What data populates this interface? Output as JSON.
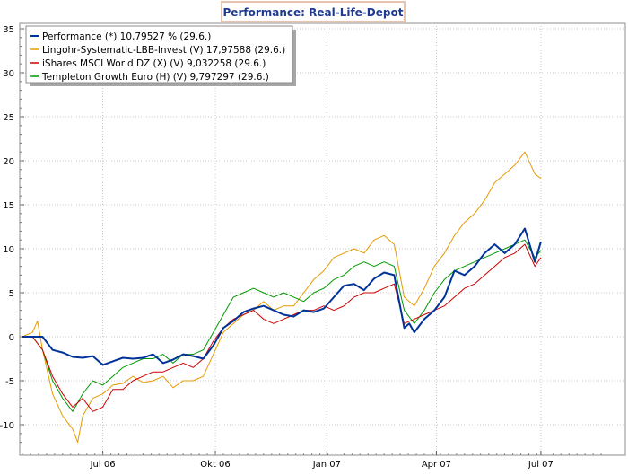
{
  "chart_data": {
    "type": "line",
    "title": "Performance: Real-Life-Depot",
    "xlabel": "",
    "ylabel": "",
    "ylim": [
      -13,
      36
    ],
    "y_ticks": [
      35,
      30,
      25,
      20,
      15,
      10,
      5,
      0,
      -5,
      -10
    ],
    "x_range": [
      0,
      58.3
    ],
    "x_tick_labels": [
      {
        "label": "Jul 06",
        "x": 8
      },
      {
        "label": "Okt 06",
        "x": 19.2
      },
      {
        "label": "Jan 07",
        "x": 30.3
      },
      {
        "label": "Apr 07",
        "x": 41.2
      },
      {
        "label": "Jul 07",
        "x": 51.6
      }
    ],
    "grid": true,
    "legend_position": "top-left",
    "series": [
      {
        "name": "Performance",
        "legend": "Performance (*) 10,79527 % (29.6.)",
        "color": "#003399",
        "points": [
          [
            0,
            0
          ],
          [
            1,
            0
          ],
          [
            2,
            0
          ],
          [
            3,
            -1.5
          ],
          [
            4,
            -1.8
          ],
          [
            5,
            -2.3
          ],
          [
            6,
            -2.4
          ],
          [
            7,
            -2.2
          ],
          [
            8,
            -3.2
          ],
          [
            9,
            -2.8
          ],
          [
            10,
            -2.4
          ],
          [
            11,
            -2.5
          ],
          [
            12,
            -2.4
          ],
          [
            13,
            -2.0
          ],
          [
            14,
            -3.0
          ],
          [
            15,
            -2.6
          ],
          [
            16,
            -2.0
          ],
          [
            17,
            -2.2
          ],
          [
            18,
            -2.5
          ],
          [
            19,
            -1.0
          ],
          [
            20,
            1.0
          ],
          [
            21,
            1.8
          ],
          [
            22,
            2.8
          ],
          [
            23,
            3.2
          ],
          [
            24,
            3.5
          ],
          [
            25,
            3.0
          ],
          [
            26,
            2.5
          ],
          [
            27,
            2.3
          ],
          [
            28,
            3.0
          ],
          [
            29,
            2.8
          ],
          [
            30,
            3.2
          ],
          [
            31,
            4.5
          ],
          [
            32,
            5.8
          ],
          [
            33,
            6.0
          ],
          [
            34,
            5.3
          ],
          [
            35,
            6.6
          ],
          [
            36,
            7.3
          ],
          [
            37,
            7.0
          ],
          [
            38,
            1.0
          ],
          [
            38.5,
            1.5
          ],
          [
            39,
            0.5
          ],
          [
            40,
            2.0
          ],
          [
            41,
            3.0
          ],
          [
            42,
            4.5
          ],
          [
            43,
            7.5
          ],
          [
            44,
            7.0
          ],
          [
            45,
            8.0
          ],
          [
            46,
            9.5
          ],
          [
            47,
            10.5
          ],
          [
            48,
            9.5
          ],
          [
            49,
            10.5
          ],
          [
            50,
            12.3
          ],
          [
            51,
            8.5
          ],
          [
            51.6,
            10.8
          ]
        ]
      },
      {
        "name": "Lingohr-Systematic-LBB-Invest",
        "legend": "Lingohr-Systematic-LBB-Invest (V) 17,97588 (29.6.)",
        "color": "#e69a00",
        "points": [
          [
            0,
            0
          ],
          [
            1,
            0.5
          ],
          [
            1.5,
            1.8
          ],
          [
            2,
            -1.5
          ],
          [
            3,
            -6.5
          ],
          [
            4,
            -9.0
          ],
          [
            5,
            -10.5
          ],
          [
            5.5,
            -12.0
          ],
          [
            6,
            -9.0
          ],
          [
            7,
            -7.0
          ],
          [
            8,
            -6.5
          ],
          [
            9,
            -5.5
          ],
          [
            10,
            -5.3
          ],
          [
            11,
            -4.5
          ],
          [
            12,
            -5.2
          ],
          [
            13,
            -5.0
          ],
          [
            14,
            -4.5
          ],
          [
            15,
            -5.8
          ],
          [
            16,
            -5.0
          ],
          [
            17,
            -5.0
          ],
          [
            18,
            -4.5
          ],
          [
            19,
            -2.0
          ],
          [
            20,
            0.5
          ],
          [
            21,
            1.5
          ],
          [
            22,
            2.5
          ],
          [
            23,
            3.0
          ],
          [
            24,
            4.0
          ],
          [
            25,
            3.0
          ],
          [
            26,
            3.5
          ],
          [
            27,
            3.5
          ],
          [
            28,
            5.0
          ],
          [
            29,
            6.5
          ],
          [
            30,
            7.5
          ],
          [
            31,
            9.0
          ],
          [
            32,
            9.5
          ],
          [
            33,
            10.0
          ],
          [
            34,
            9.5
          ],
          [
            35,
            11.0
          ],
          [
            36,
            11.5
          ],
          [
            37,
            10.5
          ],
          [
            38,
            4.5
          ],
          [
            39,
            3.5
          ],
          [
            40,
            5.5
          ],
          [
            41,
            8.0
          ],
          [
            42,
            9.5
          ],
          [
            43,
            11.5
          ],
          [
            44,
            13.0
          ],
          [
            45,
            14.0
          ],
          [
            46,
            15.5
          ],
          [
            47,
            17.5
          ],
          [
            48,
            18.5
          ],
          [
            49,
            19.5
          ],
          [
            50,
            21.0
          ],
          [
            51,
            18.5
          ],
          [
            51.6,
            18.0
          ]
        ]
      },
      {
        "name": "iShares MSCI World DZ",
        "legend": "iShares MSCI World DZ (X) (V) 9,032258 (29.6.)",
        "color": "#cc0000",
        "points": [
          [
            0,
            0
          ],
          [
            1,
            0
          ],
          [
            2,
            -1.5
          ],
          [
            3,
            -4.5
          ],
          [
            4,
            -6.5
          ],
          [
            5,
            -8.0
          ],
          [
            6,
            -7.0
          ],
          [
            7,
            -8.5
          ],
          [
            8,
            -8.0
          ],
          [
            9,
            -6.0
          ],
          [
            10,
            -6.0
          ],
          [
            11,
            -5.0
          ],
          [
            12,
            -4.5
          ],
          [
            13,
            -4.0
          ],
          [
            14,
            -4.0
          ],
          [
            15,
            -3.5
          ],
          [
            16,
            -3.0
          ],
          [
            17,
            -3.5
          ],
          [
            18,
            -2.5
          ],
          [
            19,
            -0.5
          ],
          [
            20,
            1.0
          ],
          [
            21,
            2.0
          ],
          [
            22,
            2.5
          ],
          [
            23,
            3.0
          ],
          [
            24,
            2.0
          ],
          [
            25,
            1.5
          ],
          [
            26,
            2.0
          ],
          [
            27,
            2.5
          ],
          [
            28,
            3.0
          ],
          [
            29,
            3.0
          ],
          [
            30,
            3.5
          ],
          [
            31,
            3.0
          ],
          [
            32,
            3.5
          ],
          [
            33,
            4.5
          ],
          [
            34,
            5.0
          ],
          [
            35,
            5.0
          ],
          [
            36,
            5.5
          ],
          [
            37,
            6.0
          ],
          [
            38,
            1.5
          ],
          [
            39,
            2.0
          ],
          [
            40,
            2.5
          ],
          [
            41,
            3.0
          ],
          [
            42,
            3.5
          ],
          [
            43,
            4.5
          ],
          [
            44,
            5.5
          ],
          [
            45,
            6.0
          ],
          [
            46,
            7.0
          ],
          [
            47,
            8.0
          ],
          [
            48,
            9.0
          ],
          [
            49,
            9.5
          ],
          [
            50,
            10.5
          ],
          [
            51,
            8.0
          ],
          [
            51.6,
            9.0
          ]
        ]
      },
      {
        "name": "Templeton Growth Euro",
        "legend": "Templeton Growth Euro (H) (V) 9,797297 (29.6.)",
        "color": "#009900",
        "points": [
          [
            0,
            0
          ],
          [
            1,
            0
          ],
          [
            2,
            -1.5
          ],
          [
            3,
            -5.0
          ],
          [
            4,
            -7.0
          ],
          [
            5,
            -8.5
          ],
          [
            6,
            -6.5
          ],
          [
            7,
            -5.0
          ],
          [
            8,
            -5.5
          ],
          [
            9,
            -4.5
          ],
          [
            10,
            -3.5
          ],
          [
            11,
            -3.0
          ],
          [
            12,
            -2.5
          ],
          [
            13,
            -2.5
          ],
          [
            14,
            -2.0
          ],
          [
            15,
            -3.0
          ],
          [
            16,
            -2.0
          ],
          [
            17,
            -2.0
          ],
          [
            18,
            -1.5
          ],
          [
            19,
            0.5
          ],
          [
            20,
            2.5
          ],
          [
            21,
            4.5
          ],
          [
            22,
            5.0
          ],
          [
            23,
            5.5
          ],
          [
            24,
            5.0
          ],
          [
            25,
            4.5
          ],
          [
            26,
            5.0
          ],
          [
            27,
            4.5
          ],
          [
            28,
            4.0
          ],
          [
            29,
            5.0
          ],
          [
            30,
            5.5
          ],
          [
            31,
            6.5
          ],
          [
            32,
            7.0
          ],
          [
            33,
            8.0
          ],
          [
            34,
            8.5
          ],
          [
            35,
            8.0
          ],
          [
            36,
            8.5
          ],
          [
            37,
            8.0
          ],
          [
            38,
            3.0
          ],
          [
            39,
            1.5
          ],
          [
            40,
            3.0
          ],
          [
            41,
            5.0
          ],
          [
            42,
            6.5
          ],
          [
            43,
            7.5
          ],
          [
            44,
            8.0
          ],
          [
            45,
            8.5
          ],
          [
            46,
            9.0
          ],
          [
            47,
            9.5
          ],
          [
            48,
            10.0
          ],
          [
            49,
            10.5
          ],
          [
            50,
            11.0
          ],
          [
            51,
            9.0
          ],
          [
            51.6,
            9.8
          ]
        ]
      }
    ]
  }
}
